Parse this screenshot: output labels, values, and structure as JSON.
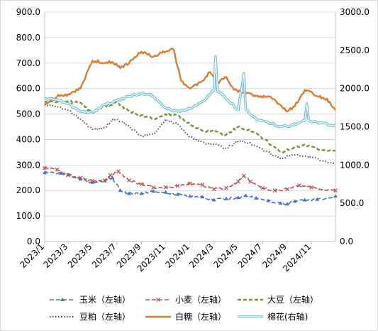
{
  "chart_data": {
    "type": "line",
    "title": "",
    "x_ticks": [
      "2023/1",
      "2023/3",
      "2023/5",
      "2023/7",
      "2023/9",
      "2023/11",
      "2024/1",
      "2024/3",
      "2024/5",
      "2024/7",
      "2024/9",
      "2024/11"
    ],
    "x_range": [
      "2023-01-01",
      "2024-12-31"
    ],
    "y_left": {
      "min": 0,
      "max": 900,
      "step": 100,
      "tick_labels": [
        "0.0",
        "100.0",
        "200.0",
        "300.0",
        "400.0",
        "500.0",
        "600.0",
        "700.0",
        "800.0",
        "900.0"
      ]
    },
    "y_right": {
      "min": 0,
      "max": 3000,
      "step": 500,
      "tick_labels": [
        "0.0",
        "500.0",
        "1000.0",
        "1500.0",
        "2000.0",
        "2500.0",
        "3000.0"
      ]
    },
    "grid": "horizontal",
    "legend_placement": "bottom",
    "series": [
      {
        "name": "玉米（左轴）",
        "axis": "left",
        "color": "#4472c4",
        "style": "dash-marker",
        "points": [
          [
            "2023-01-01",
            270
          ],
          [
            "2023-02-10",
            268
          ],
          [
            "2023-03-01",
            262
          ],
          [
            "2023-04-01",
            245
          ],
          [
            "2023-05-01",
            232
          ],
          [
            "2023-06-01",
            238
          ],
          [
            "2023-06-20",
            250
          ],
          [
            "2023-07-10",
            200
          ],
          [
            "2023-08-01",
            188
          ],
          [
            "2023-09-01",
            188
          ],
          [
            "2023-10-01",
            197
          ],
          [
            "2023-11-01",
            193
          ],
          [
            "2023-12-01",
            185
          ],
          [
            "2024-01-01",
            178
          ],
          [
            "2024-02-01",
            175
          ],
          [
            "2024-03-01",
            163
          ],
          [
            "2024-04-01",
            168
          ],
          [
            "2024-05-01",
            172
          ],
          [
            "2024-05-20",
            180
          ],
          [
            "2024-06-15",
            170
          ],
          [
            "2024-07-15",
            160
          ],
          [
            "2024-08-15",
            150
          ],
          [
            "2024-09-01",
            147
          ],
          [
            "2024-09-20",
            158
          ],
          [
            "2024-10-15",
            163
          ],
          [
            "2024-11-15",
            165
          ],
          [
            "2024-12-31",
            178
          ]
        ]
      },
      {
        "name": "小麦（左轴）",
        "axis": "left",
        "color": "#c0504d",
        "style": "dash-x",
        "points": [
          [
            "2023-01-01",
            288
          ],
          [
            "2023-02-01",
            282
          ],
          [
            "2023-03-01",
            260
          ],
          [
            "2023-04-01",
            250
          ],
          [
            "2023-05-01",
            238
          ],
          [
            "2023-06-01",
            240
          ],
          [
            "2023-06-15",
            260
          ],
          [
            "2023-07-05",
            275
          ],
          [
            "2023-08-01",
            240
          ],
          [
            "2023-09-01",
            225
          ],
          [
            "2023-10-01",
            212
          ],
          [
            "2023-11-01",
            213
          ],
          [
            "2023-12-01",
            218
          ],
          [
            "2024-01-01",
            228
          ],
          [
            "2024-02-01",
            222
          ],
          [
            "2024-03-01",
            205
          ],
          [
            "2024-04-01",
            210
          ],
          [
            "2024-05-01",
            235
          ],
          [
            "2024-05-15",
            258
          ],
          [
            "2024-06-01",
            235
          ],
          [
            "2024-07-01",
            210
          ],
          [
            "2024-08-01",
            200
          ],
          [
            "2024-09-01",
            205
          ],
          [
            "2024-10-01",
            220
          ],
          [
            "2024-11-01",
            212
          ],
          [
            "2024-12-31",
            200
          ]
        ]
      },
      {
        "name": "大豆（左轴）",
        "axis": "left",
        "color": "#77933c",
        "style": "dashed",
        "points": [
          [
            "2023-01-01",
            545
          ],
          [
            "2023-02-01",
            548
          ],
          [
            "2023-03-01",
            550
          ],
          [
            "2023-04-01",
            545
          ],
          [
            "2023-05-01",
            505
          ],
          [
            "2023-06-01",
            530
          ],
          [
            "2023-07-01",
            545
          ],
          [
            "2023-08-01",
            512
          ],
          [
            "2023-09-01",
            495
          ],
          [
            "2023-10-01",
            480
          ],
          [
            "2023-11-01",
            500
          ],
          [
            "2023-12-01",
            495
          ],
          [
            "2024-01-01",
            460
          ],
          [
            "2024-02-01",
            435
          ],
          [
            "2024-03-01",
            430
          ],
          [
            "2024-04-01",
            420
          ],
          [
            "2024-05-01",
            450
          ],
          [
            "2024-05-20",
            440
          ],
          [
            "2024-06-15",
            425
          ],
          [
            "2024-07-15",
            390
          ],
          [
            "2024-08-15",
            350
          ],
          [
            "2024-09-15",
            365
          ],
          [
            "2024-10-15",
            380
          ],
          [
            "2024-11-15",
            365
          ],
          [
            "2024-12-31",
            355
          ]
        ]
      },
      {
        "name": "豆粕（左轴）",
        "axis": "left",
        "color": "#5c4a8a",
        "style": "dotted",
        "points": [
          [
            "2023-01-01",
            535
          ],
          [
            "2023-02-01",
            530
          ],
          [
            "2023-03-01",
            515
          ],
          [
            "2023-04-01",
            480
          ],
          [
            "2023-05-01",
            440
          ],
          [
            "2023-06-01",
            445
          ],
          [
            "2023-06-20",
            480
          ],
          [
            "2023-07-15",
            470
          ],
          [
            "2023-08-01",
            450
          ],
          [
            "2023-09-01",
            415
          ],
          [
            "2023-10-01",
            420
          ],
          [
            "2023-11-01",
            480
          ],
          [
            "2023-12-01",
            460
          ],
          [
            "2024-01-01",
            410
          ],
          [
            "2024-02-01",
            390
          ],
          [
            "2024-03-01",
            380
          ],
          [
            "2024-04-01",
            365
          ],
          [
            "2024-05-01",
            395
          ],
          [
            "2024-05-20",
            390
          ],
          [
            "2024-06-15",
            375
          ],
          [
            "2024-07-15",
            350
          ],
          [
            "2024-08-15",
            325
          ],
          [
            "2024-09-15",
            340
          ],
          [
            "2024-10-15",
            335
          ],
          [
            "2024-11-15",
            325
          ],
          [
            "2024-12-31",
            305
          ]
        ]
      },
      {
        "name": "白糖（左轴）",
        "axis": "left",
        "color": "#e07b2e",
        "style": "solid-thick",
        "points": [
          [
            "2023-01-01",
            535
          ],
          [
            "2023-02-01",
            568
          ],
          [
            "2023-03-01",
            578
          ],
          [
            "2023-04-01",
            600
          ],
          [
            "2023-05-01",
            710
          ],
          [
            "2023-06-01",
            700
          ],
          [
            "2023-06-20",
            705
          ],
          [
            "2023-07-10",
            680
          ],
          [
            "2023-08-01",
            700
          ],
          [
            "2023-09-01",
            745
          ],
          [
            "2023-10-01",
            725
          ],
          [
            "2023-11-01",
            745
          ],
          [
            "2023-11-20",
            755
          ],
          [
            "2023-12-10",
            630
          ],
          [
            "2024-01-01",
            600
          ],
          [
            "2024-02-01",
            630
          ],
          [
            "2024-02-20",
            665
          ],
          [
            "2024-03-10",
            620
          ],
          [
            "2024-04-01",
            645
          ],
          [
            "2024-04-20",
            595
          ],
          [
            "2024-05-15",
            585
          ],
          [
            "2024-06-15",
            570
          ],
          [
            "2024-07-15",
            570
          ],
          [
            "2024-08-15",
            535
          ],
          [
            "2024-09-01",
            510
          ],
          [
            "2024-09-20",
            530
          ],
          [
            "2024-10-15",
            595
          ],
          [
            "2024-11-15",
            570
          ],
          [
            "2024-12-10",
            560
          ],
          [
            "2024-12-31",
            515
          ]
        ]
      },
      {
        "name": "棉花(右轴)",
        "axis": "right",
        "color": "#6ec1d9",
        "style": "double",
        "points": [
          [
            "2023-01-01",
            1860
          ],
          [
            "2023-02-01",
            1855
          ],
          [
            "2023-03-01",
            1800
          ],
          [
            "2023-04-01",
            1700
          ],
          [
            "2023-05-01",
            1690
          ],
          [
            "2023-06-01",
            1790
          ],
          [
            "2023-07-01",
            1840
          ],
          [
            "2023-08-01",
            1900
          ],
          [
            "2023-09-01",
            1940
          ],
          [
            "2023-10-01",
            1900
          ],
          [
            "2023-11-01",
            1750
          ],
          [
            "2023-12-01",
            1700
          ],
          [
            "2024-01-01",
            1740
          ],
          [
            "2024-02-01",
            1830
          ],
          [
            "2024-03-01",
            1975
          ],
          [
            "2024-03-05",
            2420
          ],
          [
            "2024-03-10",
            1960
          ],
          [
            "2024-04-01",
            1870
          ],
          [
            "2024-05-01",
            1720
          ],
          [
            "2024-05-15",
            2200
          ],
          [
            "2024-05-20",
            1720
          ],
          [
            "2024-06-15",
            1600
          ],
          [
            "2024-07-15",
            1560
          ],
          [
            "2024-08-15",
            1500
          ],
          [
            "2024-09-15",
            1520
          ],
          [
            "2024-10-15",
            1580
          ],
          [
            "2024-10-20",
            1800
          ],
          [
            "2024-10-25",
            1580
          ],
          [
            "2024-11-15",
            1560
          ],
          [
            "2024-12-31",
            1520
          ]
        ]
      }
    ]
  },
  "legend": [
    {
      "key": "corn",
      "label": "玉米（左轴）"
    },
    {
      "key": "wheat",
      "label": "小麦（左轴）"
    },
    {
      "key": "soybean",
      "label": "大豆（左轴）"
    },
    {
      "key": "soymeal",
      "label": "豆粕（左轴）"
    },
    {
      "key": "sugar",
      "label": "白糖（左轴）"
    },
    {
      "key": "cotton",
      "label": "棉花(右轴)"
    }
  ]
}
